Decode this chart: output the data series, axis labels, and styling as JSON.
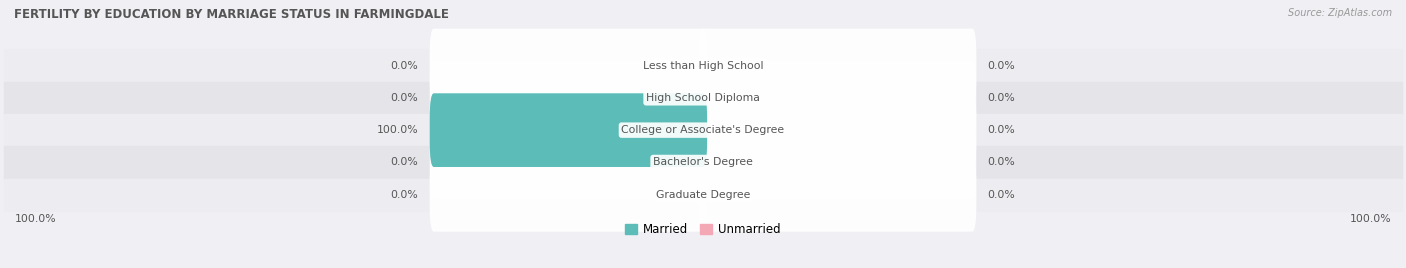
{
  "title": "FERTILITY BY EDUCATION BY MARRIAGE STATUS IN FARMINGDALE",
  "source": "Source: ZipAtlas.com",
  "categories": [
    "Less than High School",
    "High School Diploma",
    "College or Associate's Degree",
    "Bachelor's Degree",
    "Graduate Degree"
  ],
  "married_values": [
    0.0,
    0.0,
    100.0,
    0.0,
    0.0
  ],
  "unmarried_values": [
    0.0,
    0.0,
    0.0,
    0.0,
    0.0
  ],
  "married_color": "#5bbcb8",
  "unmarried_color": "#f4a7b5",
  "row_bg_colors": [
    "#ededf1",
    "#e4e4e9",
    "#ededf1",
    "#e4e4e9",
    "#ededf1"
  ],
  "label_color": "#555555",
  "title_color": "#555555",
  "max_value": 100.0,
  "legend_married": "Married",
  "legend_unmarried": "Unmarried",
  "bottom_left_label": "100.0%",
  "bottom_right_label": "100.0%"
}
